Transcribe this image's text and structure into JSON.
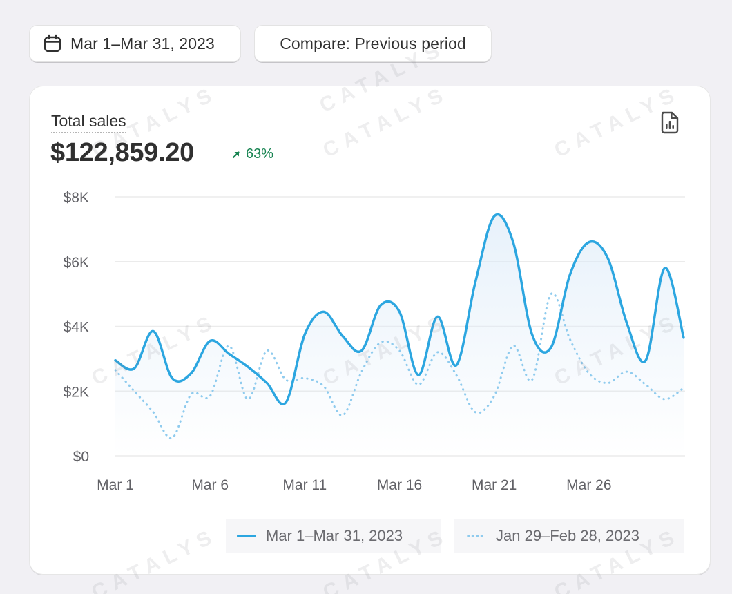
{
  "toolbar": {
    "date_range_label": "Mar 1–Mar 31, 2023",
    "compare_label": "Compare: Previous period",
    "date_icon": "calendar-icon"
  },
  "card": {
    "metric_title": "Total sales",
    "metric_value": "$122,859.20",
    "change_value": "63%",
    "change_icon": "arrow-up-right-icon",
    "change_color": "#1a8553",
    "report_icon": "report-icon"
  },
  "watermark_text": "CATALYS",
  "chart_data": {
    "type": "line",
    "y_ticks": [
      "$8K",
      "$6K",
      "$4K",
      "$2K",
      "$0"
    ],
    "x_ticks": [
      "Mar 1",
      "Mar 6",
      "Mar 11",
      "Mar 16",
      "Mar 21",
      "Mar 26"
    ],
    "ylim": [
      0,
      8000
    ],
    "x": [
      "Mar 1",
      "Mar 2",
      "Mar 3",
      "Mar 4",
      "Mar 5",
      "Mar 6",
      "Mar 7",
      "Mar 8",
      "Mar 9",
      "Mar 10",
      "Mar 11",
      "Mar 12",
      "Mar 13",
      "Mar 14",
      "Mar 15",
      "Mar 16",
      "Mar 17",
      "Mar 18",
      "Mar 19",
      "Mar 20",
      "Mar 21",
      "Mar 22",
      "Mar 23",
      "Mar 24",
      "Mar 25",
      "Mar 26",
      "Mar 27",
      "Mar 28",
      "Mar 29",
      "Mar 30",
      "Mar 31"
    ],
    "grid": true,
    "legend": "bottom",
    "series": [
      {
        "name": "Mar 1–Mar 31, 2023",
        "style": "solid",
        "color": "#2ca6e0",
        "values": [
          2950,
          2700,
          3850,
          2400,
          2550,
          3550,
          3150,
          2750,
          2250,
          1650,
          3750,
          4450,
          3700,
          3250,
          4650,
          4450,
          2500,
          4300,
          2800,
          5350,
          7400,
          6600,
          3750,
          3350,
          5600,
          6600,
          6100,
          4100,
          2950,
          5800,
          3650
        ]
      },
      {
        "name": "Jan 29–Feb 28, 2023",
        "style": "dotted",
        "color": "#8fcbee",
        "values": [
          2650,
          2000,
          1350,
          550,
          1900,
          1850,
          3400,
          1750,
          3250,
          2350,
          2400,
          2150,
          1250,
          2600,
          3500,
          3250,
          2200,
          3200,
          2500,
          1350,
          1850,
          3400,
          2350,
          5000,
          3600,
          2550,
          2250,
          2600,
          2200,
          1750,
          2100
        ]
      }
    ]
  }
}
